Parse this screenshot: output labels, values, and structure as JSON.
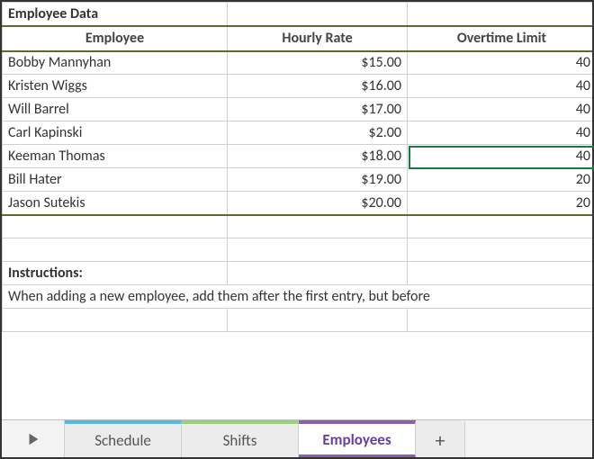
{
  "title": "Employee Data",
  "columns": [
    "Employee",
    "Hourly Rate",
    "Overtime Limit"
  ],
  "rows": [
    {
      "name": "Bobby Mannyhan",
      "rate": "$15.00",
      "ot": "40"
    },
    {
      "name": "Kristen Wiggs",
      "rate": "$16.00",
      "ot": "40"
    },
    {
      "name": "Will Barrel",
      "rate": "$17.00",
      "ot": "40"
    },
    {
      "name": "Carl Kapinski",
      "rate": "$2.00",
      "ot": "40"
    },
    {
      "name": "Keeman Thomas",
      "rate": "$18.00",
      "ot": "40"
    },
    {
      "name": "Bill Hater",
      "rate": "$19.00",
      "ot": "20"
    },
    {
      "name": "Jason Sutekis",
      "rate": "$20.00",
      "ot": "20"
    }
  ],
  "instructions": {
    "label": "Instructions:",
    "text": "When adding a new employee, add them after the first entry, but before"
  },
  "tabs": {
    "schedule": "Schedule",
    "shifts": "Shifts",
    "employees": "Employees",
    "add": "+"
  },
  "selection": {
    "row_index": 4,
    "col": "ot"
  },
  "colors": {
    "header_border": "#5a6b2f",
    "selection_border": "#1a7a43",
    "tab_schedule": "#59b7e6",
    "tab_shifts": "#9bcf7a",
    "tab_employees": "#8b5fb0",
    "grid_line": "#d0d0d0",
    "tabstrip_bg": "#f3f3f3"
  }
}
